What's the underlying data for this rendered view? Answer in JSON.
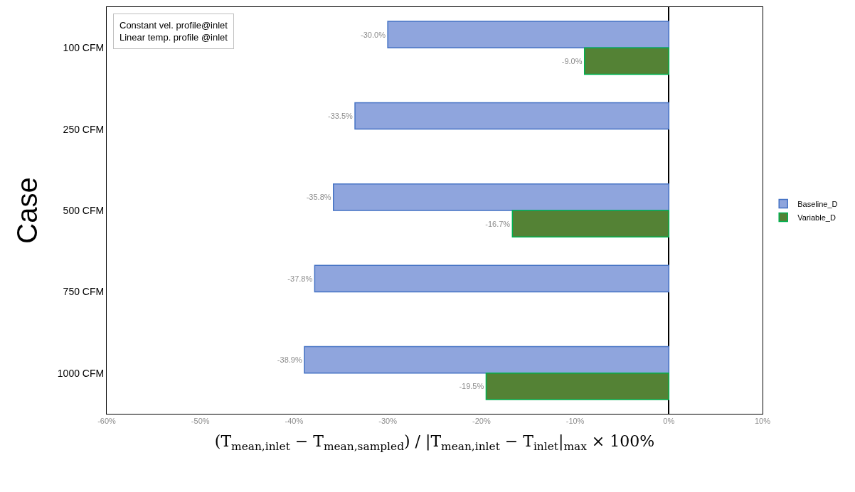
{
  "chart_data": {
    "type": "bar",
    "orientation": "horizontal",
    "xlabel": "(T$_{mean,inlet}$ − T$_{mean,sampled}$) / |T$_{mean,inlet}$ − T$_{inlet}$|$_{max}$ × 100%",
    "ylabel": "Case",
    "annotations": [
      "Constant vel. profile@inlet\nLinear temp. profile @inlet"
    ],
    "categories": [
      "100 CFM",
      "250 CFM",
      "500 CFM",
      "750 CFM",
      "1000 CFM"
    ],
    "series": [
      {
        "name": "Baseline_D",
        "color": "#8fa5dd",
        "values": [
          -30.0,
          -33.5,
          -35.8,
          -37.8,
          -38.9
        ],
        "value_labels": [
          "-30.0%",
          "-33.5%",
          "-35.8%",
          "-37.8%",
          "-38.9%"
        ]
      },
      {
        "name": "Variable_D",
        "color": "#548235",
        "values": [
          -9.0,
          null,
          -16.7,
          null,
          -19.5
        ],
        "value_labels": [
          "-9.0%",
          null,
          "-16.7%",
          null,
          "-19.5%"
        ]
      }
    ],
    "xlim": [
      -60,
      10
    ],
    "xticks": [
      {
        "value": -60,
        "label": "-60%"
      },
      {
        "value": -50,
        "label": "-50%"
      },
      {
        "value": -40,
        "label": "-40%"
      },
      {
        "value": -30,
        "label": "-30%"
      },
      {
        "value": -20,
        "label": "-20%"
      },
      {
        "value": -10,
        "label": "-10%"
      },
      {
        "value": 0,
        "label": "0%"
      },
      {
        "value": 10,
        "label": "10%"
      }
    ],
    "legend": "right"
  }
}
